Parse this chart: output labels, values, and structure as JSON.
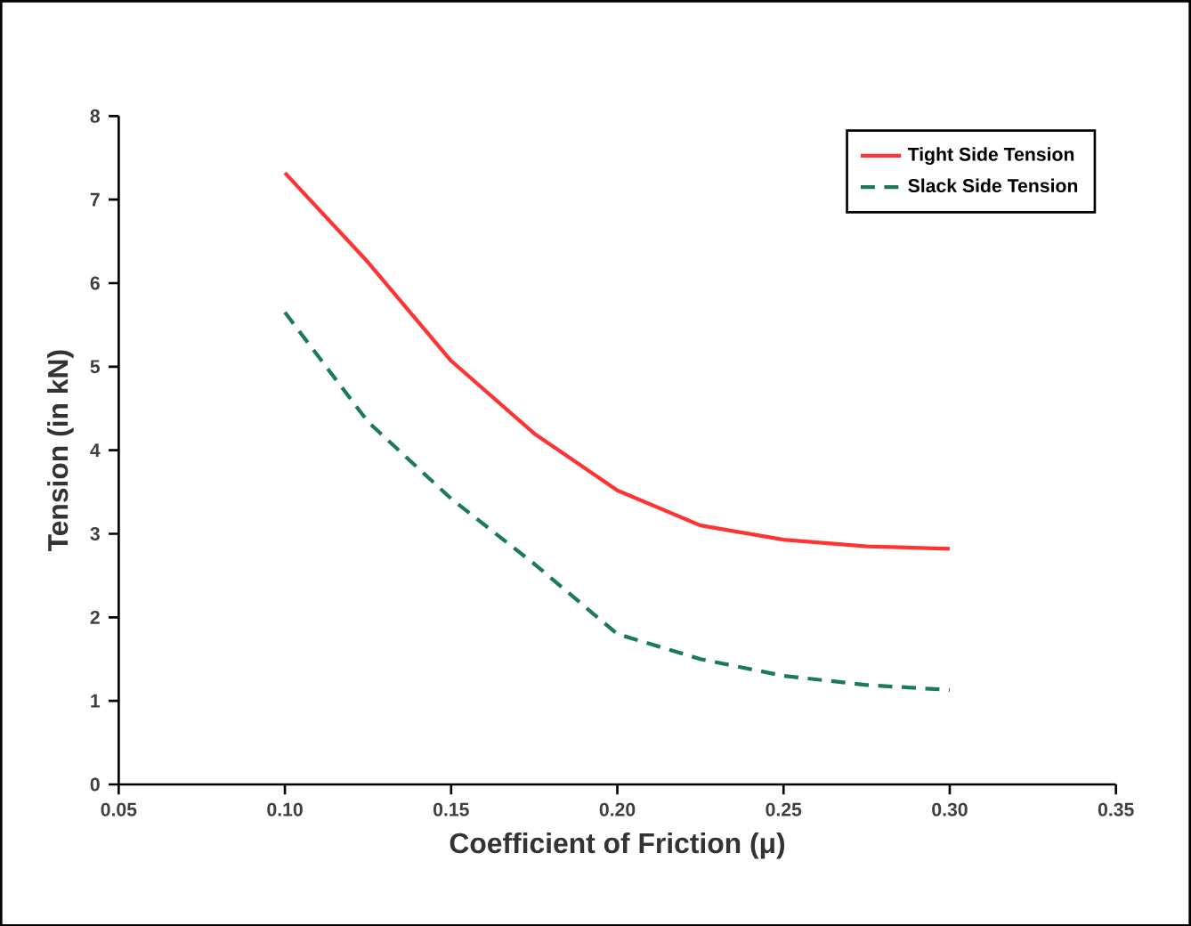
{
  "chart_data": {
    "type": "line",
    "xlabel": "Coefficient of Friction (μ)",
    "ylabel": "Tension (in kN)",
    "xlim": [
      0.05,
      0.35
    ],
    "ylim": [
      0,
      8
    ],
    "xticks": [
      {
        "value": 0.05,
        "label": "0.05"
      },
      {
        "value": 0.1,
        "label": "0.10"
      },
      {
        "value": 0.15,
        "label": "0.15"
      },
      {
        "value": 0.2,
        "label": "0.20"
      },
      {
        "value": 0.25,
        "label": "0.25"
      },
      {
        "value": 0.3,
        "label": "0.30"
      },
      {
        "value": 0.35,
        "label": "0.35"
      }
    ],
    "yticks": [
      0,
      1,
      2,
      3,
      4,
      5,
      6,
      7,
      8
    ],
    "x": [
      0.1,
      0.125,
      0.15,
      0.175,
      0.2,
      0.225,
      0.25,
      0.275,
      0.3
    ],
    "series": [
      {
        "name": "Tight Side Tension",
        "color": "#ff3333",
        "line_style": "solid",
        "values": [
          7.32,
          6.25,
          5.07,
          4.2,
          3.52,
          3.1,
          2.93,
          2.85,
          2.82
        ]
      },
      {
        "name": "Slack Side Tension",
        "color": "#1a7a5a",
        "line_style": "dashed",
        "values": [
          5.65,
          4.34,
          3.42,
          2.64,
          1.8,
          1.5,
          1.3,
          1.19,
          1.13
        ]
      }
    ],
    "legend": "top right",
    "grid": false,
    "marker": "none"
  }
}
